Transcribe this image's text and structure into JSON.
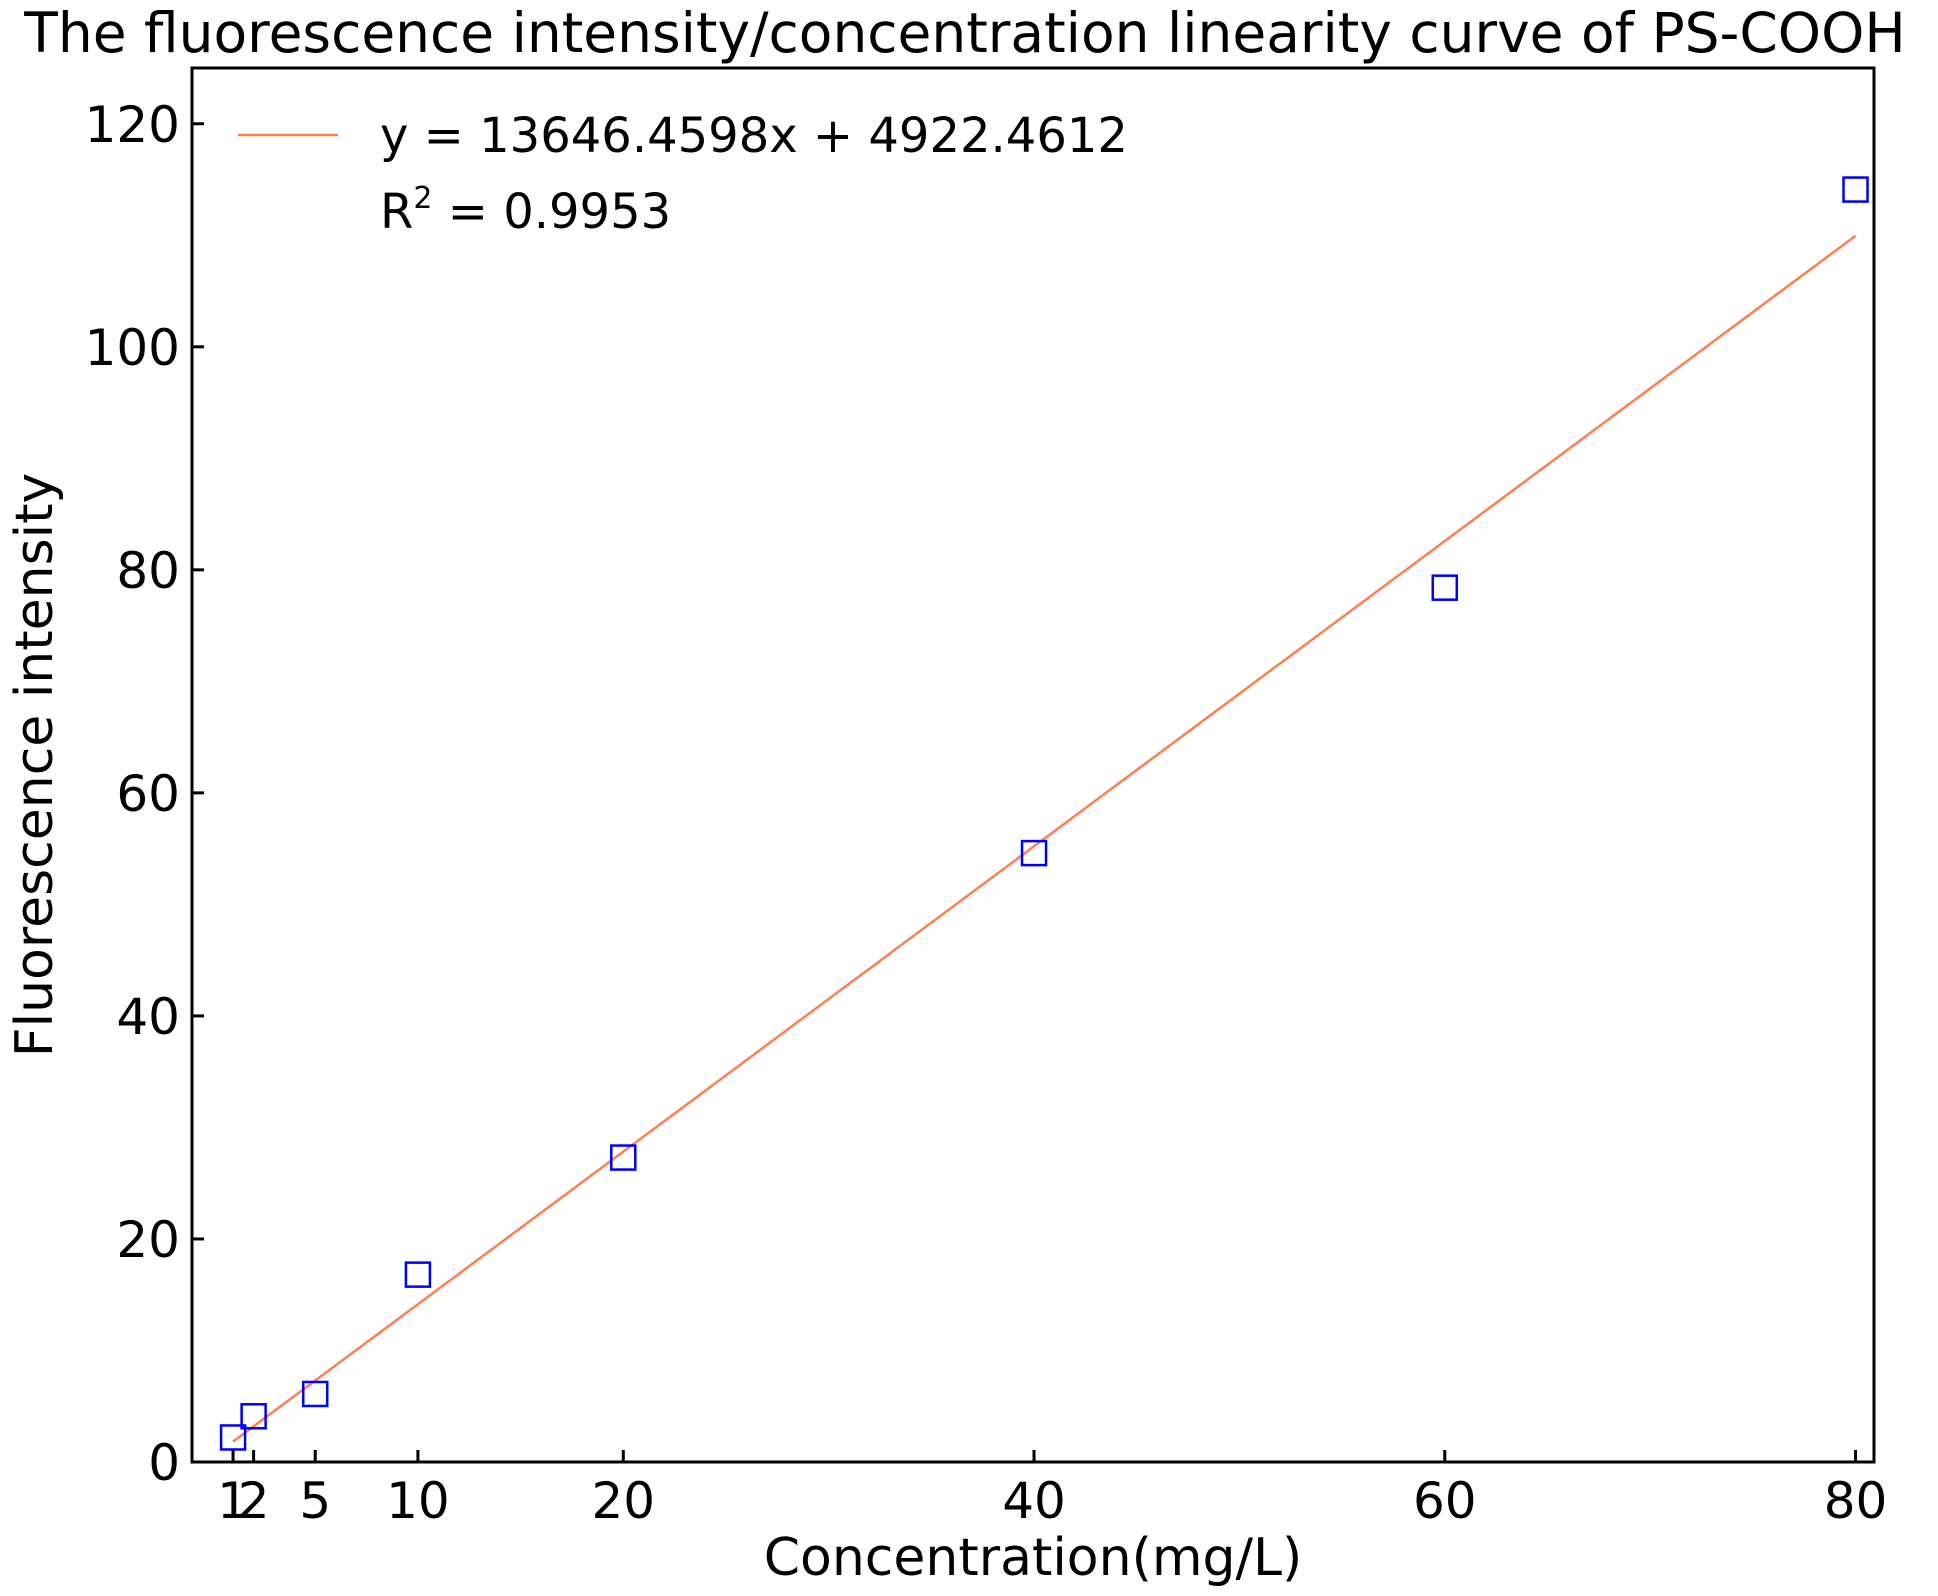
{
  "chart_data": {
    "type": "scatter",
    "title": "The fluorescence intensity/concentration linearity curve of PS-COOH",
    "xlabel": "Concentration(mg/L)",
    "ylabel": "Fluorescence intensity",
    "xlim": [
      -1,
      80.9
    ],
    "ylim": [
      0,
      125
    ],
    "x_ticks": [
      1,
      2,
      5,
      10,
      20,
      40,
      60,
      80
    ],
    "y_ticks": [
      0,
      20,
      40,
      60,
      80,
      100,
      120
    ],
    "grid": false,
    "series": [
      {
        "type": "scatter",
        "marker": "open-square",
        "color": "#0000ff",
        "x": [
          1,
          2,
          5,
          10,
          20,
          40,
          60,
          80
        ],
        "y": [
          2.2,
          4.1,
          6.1,
          16.8,
          27.3,
          54.6,
          78.4,
          114.1
        ]
      },
      {
        "type": "line",
        "color": "#ff7f50",
        "x": [
          1,
          80
        ],
        "y": [
          1.83,
          109.95
        ]
      }
    ],
    "legend": {
      "position": "top-left",
      "equation": "y = 13646.4598x + 4922.4612",
      "r2_prefix": "R",
      "r2_superscript": "2",
      "r2_value": " = 0.9953"
    }
  }
}
